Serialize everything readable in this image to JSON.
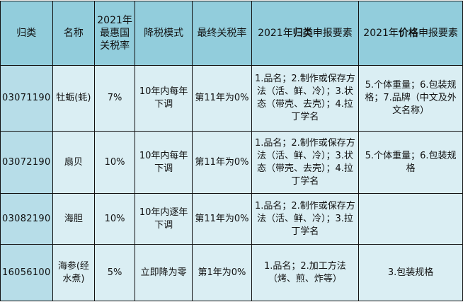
{
  "header": {
    "col1": "归类",
    "col2": "名称",
    "col3": "2021年最惠国关税率",
    "col4": "降税模式",
    "col5": "最终关税率",
    "col6_pre": "2021年",
    "col6_bold": "归类",
    "col6_post": "申报要素",
    "col7_pre": "2021年",
    "col7_bold": "价格",
    "col7_post": "申报要素"
  },
  "rows": [
    {
      "code": "03071190",
      "name": "牡蛎(蚝)",
      "rate": "7%",
      "mode": "10年内每年下调",
      "final": "第11年为0%",
      "classify": "1.品名；2.制作或保存方法（活、鲜、冷）；3.状态（带壳、去壳）；4.拉丁学名",
      "price": "5.个体重量；6.包装规格；7.品牌（中文及外文名称）"
    },
    {
      "code": "03072190",
      "name": "扇贝",
      "rate": "10%",
      "mode": "10年内每年下调",
      "final": "第11年为0%",
      "classify": "1.品名；2.制作或保存方法（活、鲜、冷）；3.状态（带壳、去壳）；4.拉丁学名",
      "price": "5.个体重量；6.包装规格"
    },
    {
      "code": "03082190",
      "name": "海胆",
      "rate": "10%",
      "mode": "10年内逐年下调",
      "final": "第11年为0%",
      "classify": "1.品名；2.制作或保存方法（活、鲜、冷）；3.拉丁学名",
      "price": ""
    },
    {
      "code": "16056100",
      "name": "海参(经水煮)",
      "rate": "5%",
      "mode": "立即降为零",
      "final": "第1年为0%",
      "classify": "1.品名；2.加工方法（烤、煎、炸等）",
      "price": "3.包装规格"
    }
  ],
  "colors": {
    "header": "#92cddc",
    "code_column": "#b7dde8",
    "body": "#daeef3"
  }
}
